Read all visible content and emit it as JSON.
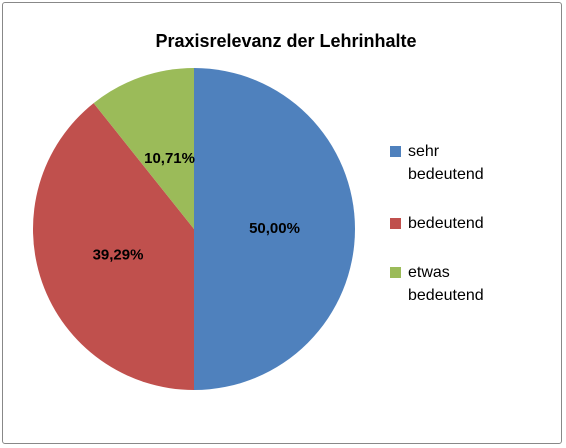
{
  "chart_data": {
    "type": "pie",
    "title": "Praxisrelevanz der Lehrinhalte",
    "categories": [
      "sehr bedeutend",
      "bedeutend",
      "etwas bedeutend"
    ],
    "values": [
      50,
      39.29,
      10.71
    ],
    "value_labels": [
      "50,00%",
      "39,29%",
      "10,71%"
    ],
    "colors": [
      "#4f81bd",
      "#c0504d",
      "#9bbb59"
    ],
    "legend": "right"
  }
}
